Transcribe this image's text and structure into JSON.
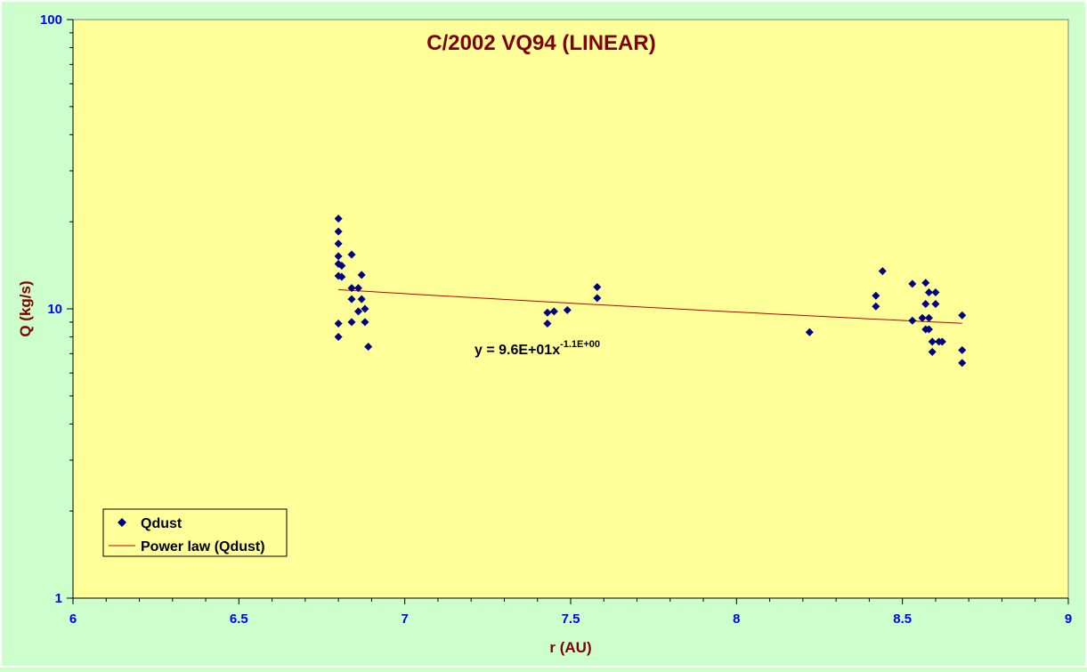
{
  "chart_data": {
    "type": "scatter",
    "title": "C/2002 VQ94 (LINEAR)",
    "xlabel": "r (AU)",
    "ylabel": "Q (kg/s)",
    "xlim": [
      6,
      9
    ],
    "ylim": [
      1,
      100
    ],
    "yscale": "log",
    "grid": false,
    "legend_position": "bottom-left",
    "x_ticks": [
      "6",
      "6.5",
      "7",
      "7.5",
      "8",
      "8.5",
      "9"
    ],
    "y_ticks": [
      "1",
      "10",
      "100"
    ],
    "colors": {
      "plot_background": "#ffff99",
      "outer_background": "#ccffcc",
      "title": "#800000",
      "axis_title": "#800000",
      "tick_label": "#0000ff",
      "marker": "#000080",
      "trendline": "#c00000"
    },
    "series": [
      {
        "name": "Qdust",
        "marker": "diamond",
        "points": [
          [
            6.8,
            20.5
          ],
          [
            6.8,
            18.5
          ],
          [
            6.8,
            16.8
          ],
          [
            6.8,
            15.2
          ],
          [
            6.8,
            14.3
          ],
          [
            6.8,
            13.0
          ],
          [
            6.81,
            12.9
          ],
          [
            6.81,
            14.1
          ],
          [
            6.8,
            8.9
          ],
          [
            6.8,
            8.0
          ],
          [
            6.84,
            15.4
          ],
          [
            6.84,
            11.8
          ],
          [
            6.84,
            10.8
          ],
          [
            6.84,
            9.0
          ],
          [
            6.86,
            11.8
          ],
          [
            6.86,
            9.8
          ],
          [
            6.87,
            13.1
          ],
          [
            6.87,
            10.8
          ],
          [
            6.88,
            10.0
          ],
          [
            6.88,
            9.0
          ],
          [
            6.89,
            7.4
          ],
          [
            7.43,
            9.7
          ],
          [
            7.43,
            8.9
          ],
          [
            7.45,
            9.8
          ],
          [
            7.49,
            9.9
          ],
          [
            7.58,
            11.9
          ],
          [
            7.58,
            10.9
          ],
          [
            8.22,
            8.3
          ],
          [
            8.42,
            11.1
          ],
          [
            8.42,
            10.2
          ],
          [
            8.44,
            13.5
          ],
          [
            8.53,
            12.2
          ],
          [
            8.53,
            9.1
          ],
          [
            8.56,
            9.3
          ],
          [
            8.57,
            12.3
          ],
          [
            8.57,
            10.4
          ],
          [
            8.57,
            8.5
          ],
          [
            8.58,
            11.4
          ],
          [
            8.58,
            9.3
          ],
          [
            8.58,
            8.5
          ],
          [
            8.59,
            7.7
          ],
          [
            8.59,
            7.1
          ],
          [
            8.6,
            11.4
          ],
          [
            8.6,
            10.4
          ],
          [
            8.61,
            7.7
          ],
          [
            8.62,
            7.7
          ],
          [
            8.68,
            9.5
          ],
          [
            8.68,
            7.2
          ],
          [
            8.68,
            6.5
          ]
        ]
      },
      {
        "name": "Power law (Qdust)",
        "type": "trendline",
        "coefficient": 96,
        "exponent": -1.1,
        "x_range": [
          6.8,
          8.68
        ]
      }
    ],
    "annotation": {
      "text_main": "y = 9.6E+01x",
      "text_sup": "-1.1E+00"
    }
  }
}
